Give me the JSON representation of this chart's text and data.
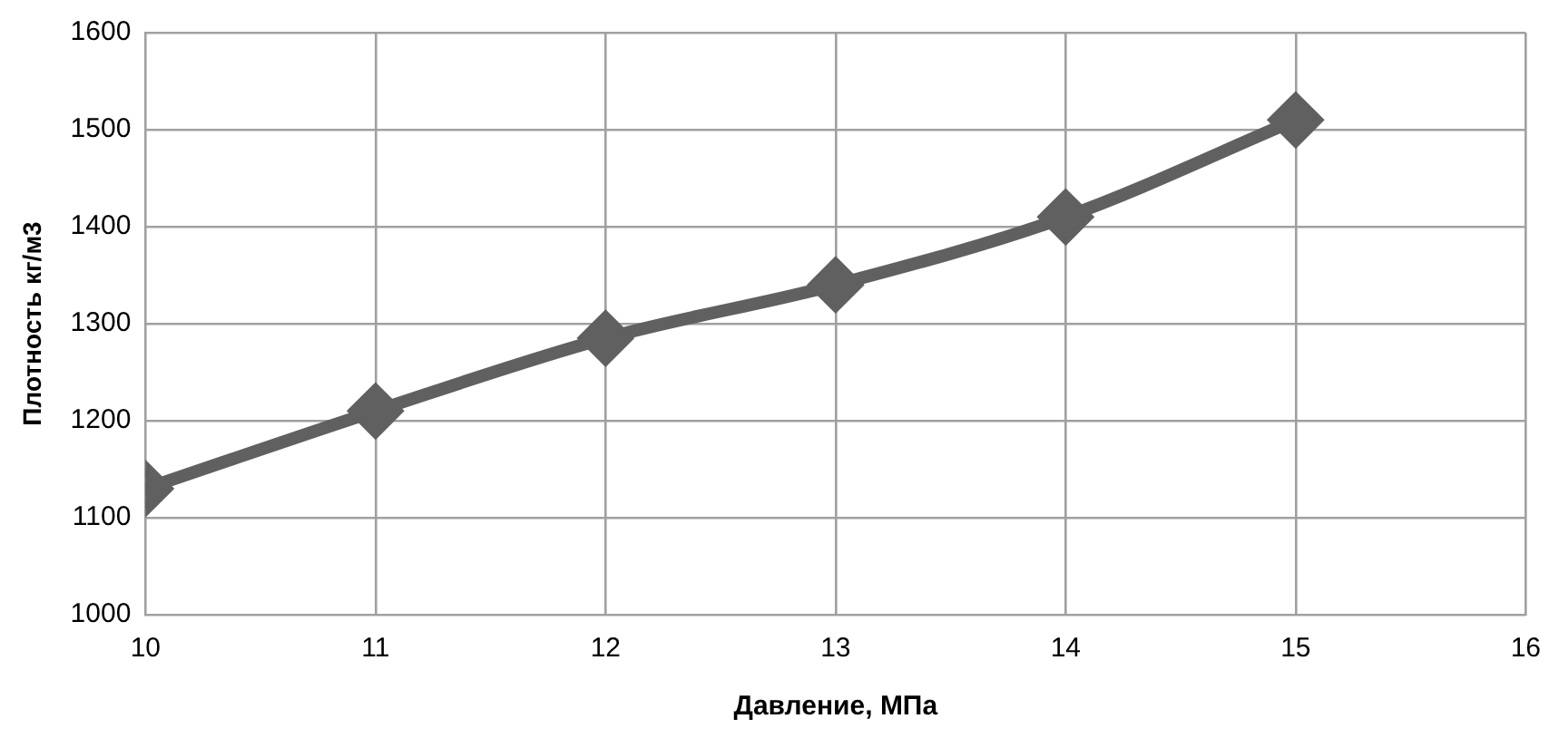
{
  "chart_data": {
    "type": "line",
    "xlabel": "Давление, МПа",
    "ylabel": "Плотность кг/м3",
    "x": [
      10,
      11,
      12,
      13,
      14,
      15
    ],
    "series": [
      {
        "color": "#606060",
        "values": [
          1130,
          1210,
          1285,
          1340,
          1410,
          1510
        ]
      }
    ],
    "xlim": [
      10,
      16
    ],
    "xticks": [
      10,
      11,
      12,
      13,
      14,
      15,
      16
    ],
    "ylim": [
      1000,
      1600
    ],
    "yticks": [
      1000,
      1100,
      1200,
      1300,
      1400,
      1500,
      1600
    ],
    "grid": true,
    "legend": false,
    "marker": "diamond",
    "line_style": "solid"
  }
}
